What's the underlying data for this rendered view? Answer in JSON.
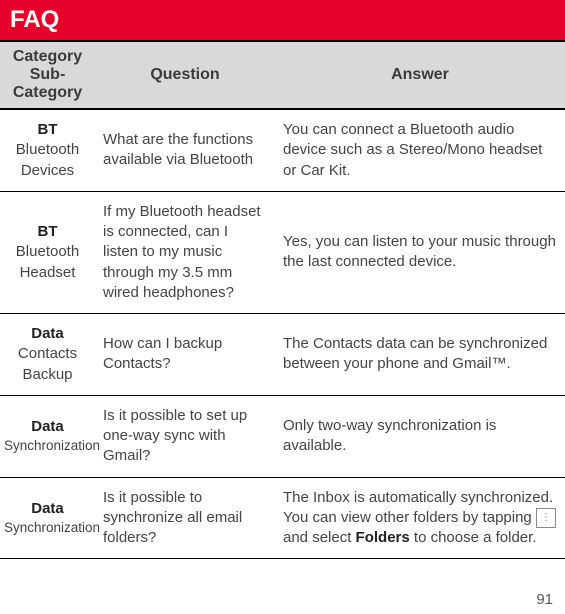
{
  "title": "FAQ",
  "page_number": "91",
  "colors": {
    "banner_bg": "#e4002b",
    "banner_fg": "#ffffff",
    "header_bg": "#d9d9d9",
    "border": "#000000",
    "row_border": "#000000",
    "text": "#444444"
  },
  "header": {
    "category_line1": "Category",
    "category_line2": "Sub-Category",
    "question": "Question",
    "answer": "Answer"
  },
  "rows": [
    {
      "cat": "BT",
      "subcat": "Bluetooth Devices",
      "question": "What are the functions available via Bluetooth",
      "answer": "You can connect a Bluetooth audio device such as a Stereo/Mono headset or Car Kit."
    },
    {
      "cat": "BT",
      "subcat": "Bluetooth Headset",
      "question": "If my Bluetooth headset is connected, can I listen to my music through my 3.5 mm wired headphones?",
      "answer": "Yes, you can listen to your music through the last connected device."
    },
    {
      "cat": "Data",
      "subcat": "Contacts Backup",
      "question": "How can I backup Contacts?",
      "answer": "The Contacts data can be synchronized between your phone and Gmail™."
    },
    {
      "cat": "Data",
      "subcat": "Synchronization",
      "subcat_tight": true,
      "question": "Is it possible to set up one-way sync with Gmail?",
      "answer": "Only two-way synchronization is available."
    },
    {
      "cat": "Data",
      "subcat": "Synchronization",
      "subcat_tight": true,
      "question": "Is it possible to synchronize all email folders?",
      "answer_parts": {
        "pre": "The Inbox is automatically synchronized. You can view other folders by tapping ",
        "post": " and select ",
        "bold": "Folders",
        "tail": " to choose a folder."
      }
    }
  ]
}
